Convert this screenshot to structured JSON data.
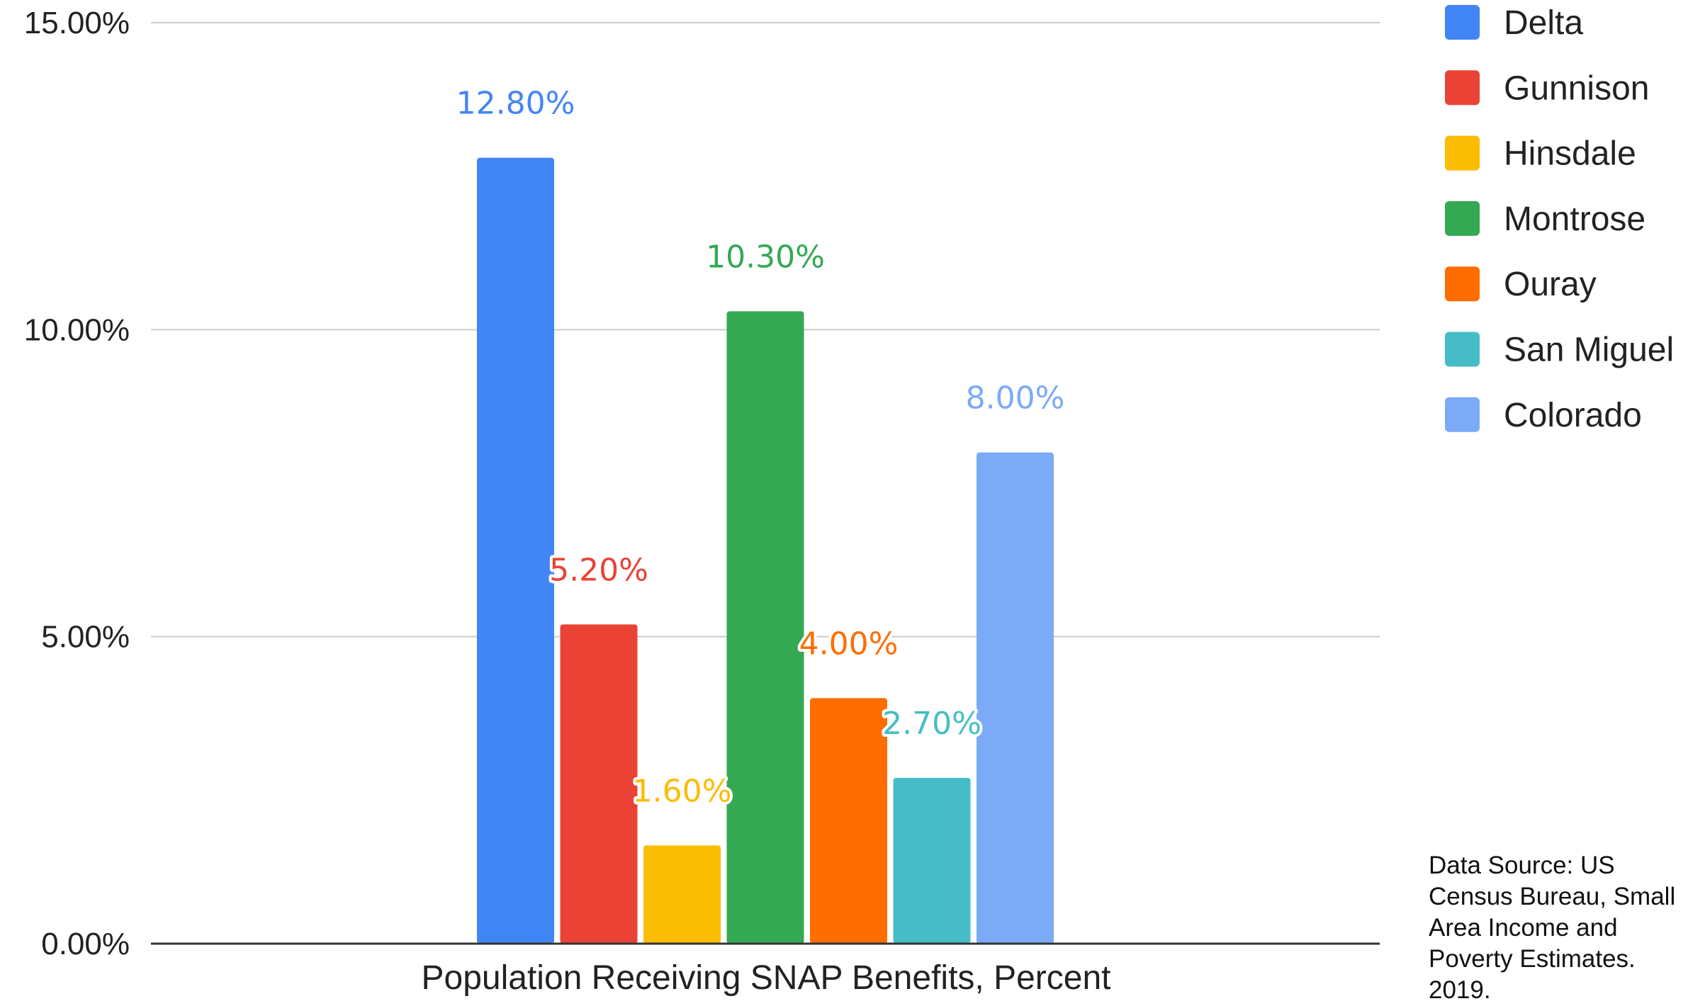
{
  "chart_data": {
    "type": "bar",
    "title": "",
    "xlabel": "",
    "ylabel": "",
    "categories": [
      "Population Receiving SNAP Benefits, Percent"
    ],
    "ylim": [
      0,
      15
    ],
    "yticks": [
      "0.00%",
      "5.00%",
      "10.00%",
      "15.00%"
    ],
    "ytick_values": [
      0,
      5,
      10,
      15
    ],
    "grid": true,
    "legend_position": "right",
    "series": [
      {
        "name": "Delta",
        "values": [
          12.8
        ],
        "label": "12.80%",
        "color": "#4285f4"
      },
      {
        "name": "Gunnison",
        "values": [
          5.2
        ],
        "label": "5.20%",
        "color": "#ea4335"
      },
      {
        "name": "Hinsdale",
        "values": [
          1.6
        ],
        "label": "1.60%",
        "color": "#fbbc04"
      },
      {
        "name": "Montrose",
        "values": [
          10.3
        ],
        "label": "10.30%",
        "color": "#34a853"
      },
      {
        "name": "Ouray",
        "values": [
          4.0
        ],
        "label": "4.00%",
        "color": "#ff6d01"
      },
      {
        "name": "San Miguel",
        "values": [
          2.7
        ],
        "label": "2.70%",
        "color": "#46bdc6"
      },
      {
        "name": "Colorado",
        "values": [
          8.0
        ],
        "label": "8.00%",
        "color": "#7baaf7"
      }
    ]
  },
  "note": {
    "lines": [
      "Data Source: US",
      "Census Bureau, Small",
      "Area Income and",
      "Poverty Estimates.",
      "2019."
    ]
  }
}
